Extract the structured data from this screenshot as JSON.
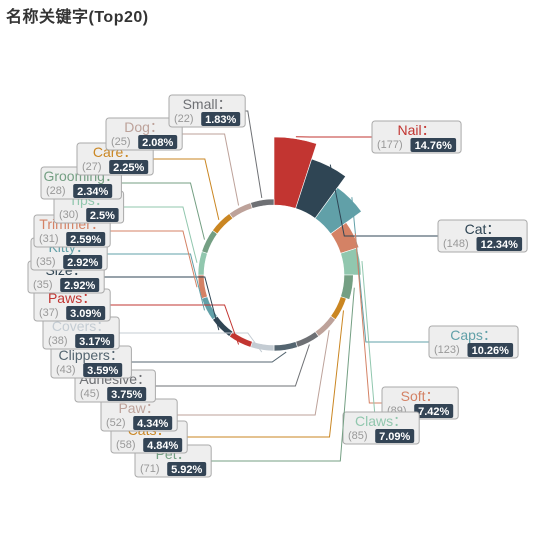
{
  "chart_data": {
    "type": "pie",
    "title": "名称关键字(Top20)",
    "categories": [
      "Nail",
      "Cat",
      "Caps",
      "Soft",
      "Claws",
      "Pet",
      "Cats",
      "Paw",
      "Adhesive",
      "Clippers",
      "Covers",
      "Paws",
      "Size",
      "Kitty",
      "Trimmer",
      "Tips",
      "Grooming",
      "Care",
      "Dog",
      "Small"
    ],
    "values": [
      177,
      148,
      123,
      89,
      85,
      71,
      58,
      52,
      45,
      43,
      38,
      37,
      35,
      35,
      31,
      30,
      28,
      27,
      25,
      22
    ],
    "percents": [
      "14.76%",
      "12.34%",
      "10.26%",
      "7.42%",
      "7.09%",
      "5.92%",
      "4.84%",
      "4.34%",
      "3.75%",
      "3.59%",
      "3.17%",
      "3.09%",
      "2.92%",
      "2.92%",
      "2.59%",
      "2.5%",
      "2.34%",
      "2.25%",
      "2.08%",
      "1.83%"
    ],
    "colors": [
      "#c23531",
      "#2f4554",
      "#61a0a8",
      "#d48265",
      "#91c7ae",
      "#749f83",
      "#ca8622",
      "#bda29a",
      "#6e7074",
      "#546570",
      "#c4ccd3",
      "#c23531",
      "#2f4554",
      "#61a0a8",
      "#d48265",
      "#91c7ae",
      "#749f83",
      "#ca8622",
      "#bda29a",
      "#6e7074"
    ],
    "legend": "none",
    "inner_radius_ratio": 0.5
  }
}
